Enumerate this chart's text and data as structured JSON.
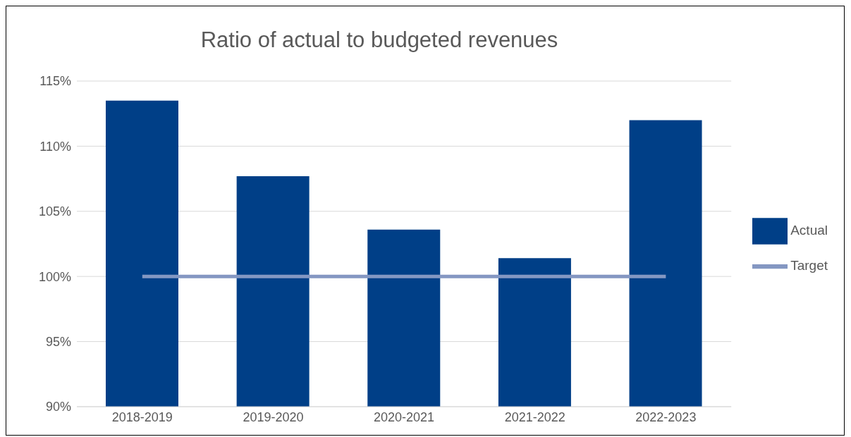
{
  "chart_data": {
    "type": "bar",
    "title": "Ratio of actual to budgeted revenues",
    "categories": [
      "2018-2019",
      "2019-2020",
      "2020-2021",
      "2021-2022",
      "2022-2023"
    ],
    "series": [
      {
        "name": "Actual",
        "color": "#003f87",
        "values": [
          113.5,
          107.7,
          103.6,
          101.4,
          112.0
        ]
      },
      {
        "name": "Target",
        "type": "line",
        "color": "#8497c2",
        "values": [
          100,
          100,
          100,
          100,
          100
        ]
      }
    ],
    "ylim": [
      90,
      115
    ],
    "yticks": [
      {
        "value": 90,
        "label": "90%"
      },
      {
        "value": 95,
        "label": "95%"
      },
      {
        "value": 100,
        "label": "100%"
      },
      {
        "value": 105,
        "label": "105%"
      },
      {
        "value": 110,
        "label": "110%"
      },
      {
        "value": 115,
        "label": "115%"
      }
    ],
    "grid": "y",
    "legend": "right",
    "marker": "none"
  }
}
